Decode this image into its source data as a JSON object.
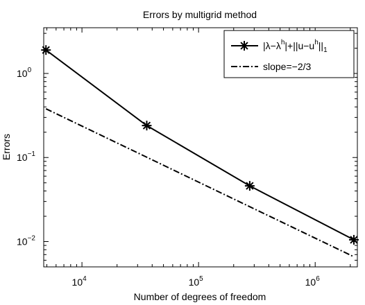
{
  "chart_data": {
    "type": "line",
    "title": "Errors by multigrid method",
    "xlabel": "Number of degrees of freedom",
    "ylabel": "Errors",
    "xscale": "log",
    "yscale": "log",
    "xlim": [
      4700,
      2300000
    ],
    "ylim": [
      0.005,
      3.5
    ],
    "grid": false,
    "legend_position": "top-right",
    "xticks": [
      {
        "value": 10000,
        "base": "10",
        "exp": "4"
      },
      {
        "value": 100000,
        "base": "10",
        "exp": "5"
      },
      {
        "value": 1000000,
        "base": "10",
        "exp": "6"
      }
    ],
    "yticks": [
      {
        "value": 1,
        "base": "10",
        "exp": "0"
      },
      {
        "value": 0.1,
        "base": "10",
        "exp": "−1"
      },
      {
        "value": 0.01,
        "base": "10",
        "exp": "−2"
      }
    ],
    "series": [
      {
        "legend_parts": [
          "|λ−λ",
          "h",
          "|+||u−u",
          "h",
          "||",
          "1"
        ],
        "style": "solid",
        "marker": "asterisk",
        "x": [
          4913,
          35937,
          274625,
          2146689
        ],
        "y": [
          1.9,
          0.24,
          0.046,
          0.0105
        ]
      },
      {
        "legend_text": "slope=−2/3",
        "style": "dash-dot",
        "marker": "none",
        "x": [
          4913,
          2146689
        ],
        "y": [
          0.38,
          0.0066
        ]
      }
    ]
  }
}
